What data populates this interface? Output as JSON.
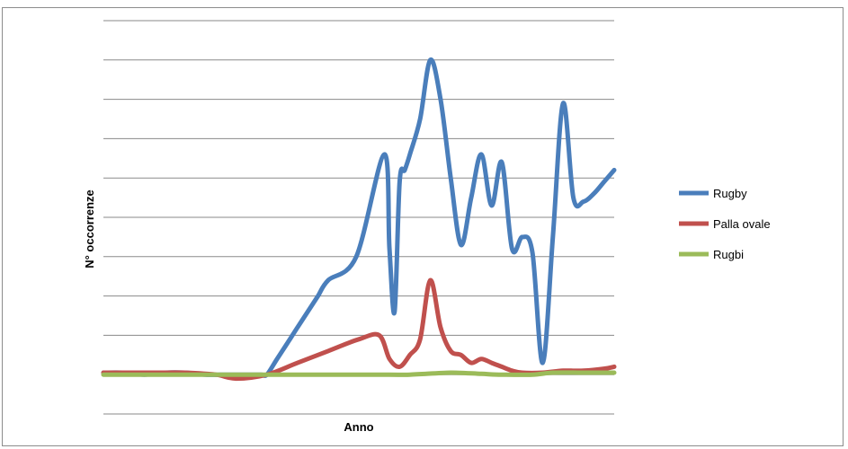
{
  "chart_data": {
    "type": "line",
    "title": "",
    "xlabel": "Anno",
    "ylabel": "N° occorrenze",
    "ylim": [
      -1,
      9
    ],
    "grid": true,
    "legend_position": "right",
    "x": [
      0,
      4,
      8,
      12,
      16,
      20,
      24,
      26,
      27,
      28,
      29,
      30,
      31,
      32,
      34,
      36,
      37,
      38,
      39,
      40,
      41,
      42,
      43,
      44,
      45,
      46,
      47,
      48,
      49,
      50,
      51,
      52,
      53,
      54,
      56,
      58,
      60,
      62,
      64,
      66,
      68,
      70,
      72,
      74,
      76,
      78,
      80,
      82,
      84,
      86,
      88,
      90,
      92,
      94,
      96,
      98,
      100
    ],
    "series": [
      {
        "name": "Rugby",
        "color": "#4a7ebb",
        "values": [
          0.05,
          0.05,
          0,
          0.05,
          0.05,
          0,
          0,
          0,
          0,
          0,
          0,
          0,
          0,
          0,
          0.4,
          0.8,
          1.2,
          1.6,
          2.0,
          2.4,
          3.0,
          5.6,
          3.2,
          1.6,
          4.9,
          5.2,
          5.6,
          6.5,
          8.0,
          7.0,
          5.0,
          3.3,
          4.5,
          5.6,
          4.3,
          5.4,
          3.2,
          3.5,
          3.1,
          0.3,
          3.5,
          6.9,
          4.5,
          4.4,
          4.6,
          4.9,
          5.2
        ],
        "x": [
          0,
          4,
          8,
          12,
          16,
          20,
          24,
          26,
          27,
          28,
          29,
          30,
          31,
          32,
          34,
          36,
          38,
          40,
          42,
          44,
          49.5,
          55,
          56,
          57,
          58,
          59,
          60,
          62,
          64,
          66,
          68,
          70,
          72,
          74,
          76,
          78,
          80,
          82,
          84,
          86,
          88,
          90,
          92,
          94,
          96,
          98,
          100
        ]
      },
      {
        "name": "Palla ovale",
        "color": "#c0504d",
        "values": [
          0.05,
          0.05,
          0.05,
          0.05,
          0.05,
          0,
          -0.1,
          0,
          0.3,
          0.6,
          0.9,
          1.0,
          0.4,
          0.2,
          0.5,
          0.9,
          2.4,
          1.2,
          0.6,
          0.5,
          0.3,
          0.4,
          0.3,
          0.2,
          0.1,
          0.05,
          0.05,
          0.1,
          0.1,
          0.15,
          0.2
        ],
        "x": [
          0,
          4,
          8,
          12,
          16,
          22,
          26,
          32,
          38,
          44,
          50,
          54,
          56,
          58,
          60,
          62,
          64,
          66,
          68,
          70,
          72,
          74,
          76,
          78,
          80,
          82,
          86,
          90,
          94,
          98,
          100
        ]
      },
      {
        "name": "Rugbi",
        "color": "#9bbb59",
        "values": [
          0,
          0,
          0,
          0,
          0,
          0,
          0,
          0,
          0,
          0.05,
          0.02,
          0,
          0,
          0.05,
          0.05,
          0.05
        ],
        "x": [
          0,
          8,
          16,
          24,
          32,
          40,
          48,
          54,
          60,
          68,
          74,
          78,
          84,
          88,
          94,
          100
        ]
      }
    ]
  }
}
